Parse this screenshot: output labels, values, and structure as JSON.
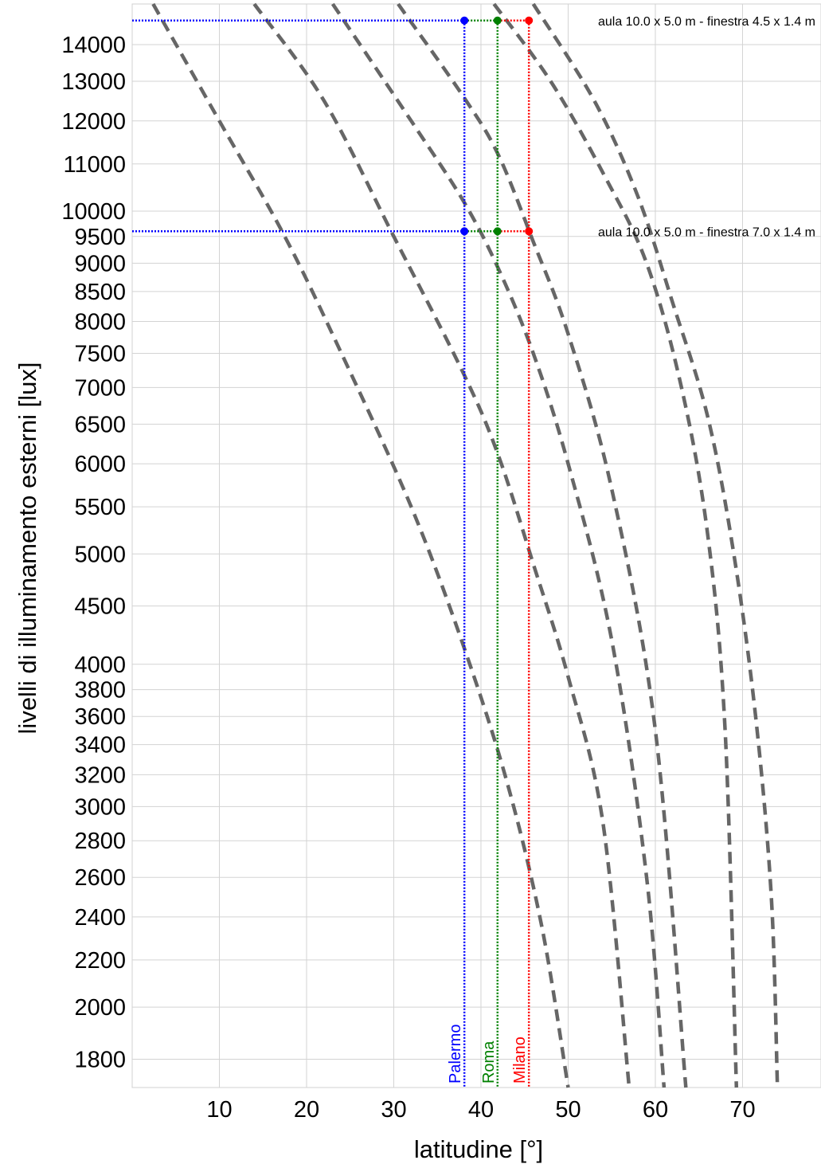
{
  "chart_data": {
    "type": "line",
    "xlabel": "latitudine [°]",
    "ylabel": "livelli di illuminamento esterni [lux]",
    "xlim": [
      0,
      79
    ],
    "ylim": [
      1700,
      15200
    ],
    "yscale": "log",
    "grid": true,
    "x_ticks": [
      10,
      20,
      30,
      40,
      50,
      60,
      70
    ],
    "x_tick_labels": [
      "10",
      "20",
      "30",
      "40",
      "50",
      "60",
      "70"
    ],
    "y_ticks": [
      1800,
      2000,
      2200,
      2400,
      2600,
      2800,
      3000,
      3200,
      3400,
      3600,
      3800,
      4000,
      4500,
      5000,
      5500,
      6000,
      6500,
      7000,
      7500,
      8000,
      8500,
      9000,
      9500,
      10000,
      11000,
      12000,
      13000,
      14000
    ],
    "y_tick_labels": [
      "1800",
      "2000",
      "2200",
      "2400",
      "2600",
      "2800",
      "3000",
      "3200",
      "3400",
      "3600",
      "3800",
      "4000",
      "4500",
      "5000",
      "5500",
      "6000",
      "6500",
      "7000",
      "7500",
      "8000",
      "8500",
      "9000",
      "9500",
      "10000",
      "11000",
      "12000",
      "13000",
      "14000"
    ],
    "curves": [
      {
        "color": "#666666",
        "style": "dashed",
        "points": [
          [
            2.4,
            15200
          ],
          [
            10,
            12000
          ],
          [
            17.5,
            9500
          ],
          [
            24,
            7500
          ],
          [
            32,
            5500
          ],
          [
            38,
            4150
          ],
          [
            43,
            3150
          ],
          [
            47,
            2350
          ],
          [
            50,
            1700
          ]
        ]
      },
      {
        "color": "#666666",
        "style": "dashed",
        "points": [
          [
            14,
            15200
          ],
          [
            22,
            12500
          ],
          [
            30,
            9500
          ],
          [
            38,
            7200
          ],
          [
            42,
            6100
          ],
          [
            46,
            4900
          ],
          [
            50,
            3900
          ],
          [
            54,
            2900
          ],
          [
            57,
            1700
          ]
        ]
      },
      {
        "color": "#666666",
        "style": "dashed",
        "points": [
          [
            23,
            15200
          ],
          [
            32,
            12000
          ],
          [
            38,
            10200
          ],
          [
            42,
            8900
          ],
          [
            46,
            7500
          ],
          [
            50,
            6000
          ],
          [
            55,
            4200
          ],
          [
            59,
            2600
          ],
          [
            61,
            1700
          ]
        ]
      },
      {
        "color": "#666666",
        "style": "dashed",
        "points": [
          [
            30.5,
            15200
          ],
          [
            38,
            12600
          ],
          [
            42,
            11200
          ],
          [
            46,
            9400
          ],
          [
            50,
            7800
          ],
          [
            55,
            5700
          ],
          [
            60,
            3500
          ],
          [
            63.5,
            1700
          ]
        ]
      },
      {
        "color": "#666666",
        "style": "dashed",
        "points": [
          [
            41.5,
            15200
          ],
          [
            48,
            13000
          ],
          [
            54,
            10800
          ],
          [
            59,
            9000
          ],
          [
            63,
            7000
          ],
          [
            66,
            5200
          ],
          [
            68,
            3500
          ],
          [
            69.3,
            1700
          ]
        ]
      },
      {
        "color": "#666666",
        "style": "dashed",
        "points": [
          [
            46,
            15200
          ],
          [
            53,
            12500
          ],
          [
            58,
            10300
          ],
          [
            62,
            8300
          ],
          [
            66,
            6600
          ],
          [
            69,
            5000
          ],
          [
            71.5,
            3600
          ],
          [
            73.3,
            2500
          ],
          [
            74,
            1700
          ]
        ]
      }
    ],
    "reference_levels": [
      {
        "y": 14700,
        "label": "aula 10.0 x 5.0 m - finestra 4.5 x 1.4 m"
      },
      {
        "y": 9600,
        "label": "aula 10.0 x 5.0 m - finestra 7.0 x 1.4 m"
      }
    ],
    "cities": [
      {
        "name": "Palermo",
        "latitude": 38.1,
        "color": "#0000ff"
      },
      {
        "name": "Roma",
        "latitude": 41.9,
        "color": "#008000"
      },
      {
        "name": "Milano",
        "latitude": 45.5,
        "color": "#ff0000"
      }
    ]
  }
}
